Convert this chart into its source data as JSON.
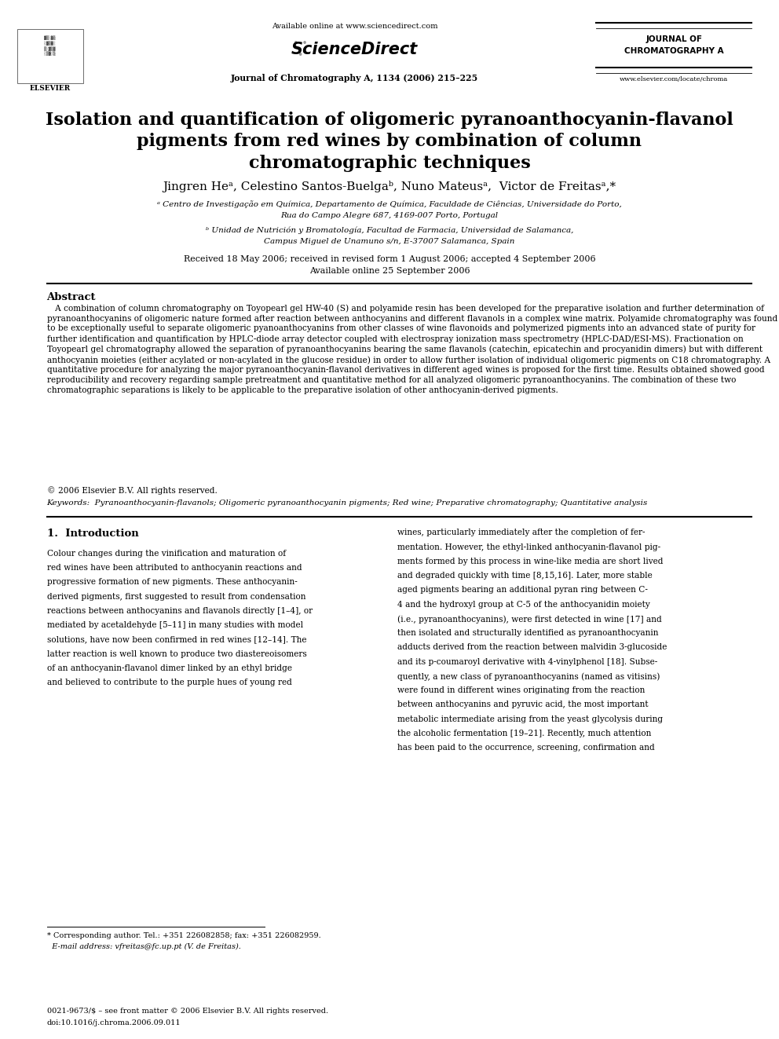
{
  "page_width": 9.92,
  "page_height": 13.23,
  "bg_color": "#ffffff",
  "header": {
    "available_online": "Available online at www.sciencedirect.com",
    "journal_name": "Journal of Chromatography A, 1134 (2006) 215–225",
    "journal_right_line1": "JOURNAL OF",
    "journal_right_line2": "CHROMATOGRAPHY A",
    "website": "www.elsevier.com/locate/chroma"
  },
  "title_line1": "Isolation and quantification of oligomeric pyranoanthocyanin-flavanol",
  "title_line2": "pigments from red wines by combination of column",
  "title_line3": "chromatographic techniques",
  "authors": "Jingren Heᵃ, Celestino Santos-Buelgaᵇ, Nuno Mateusᵃ,  Victor de Freitasᵃ,*",
  "affiliation_a": "ᵃ Centro de Investigação em Química, Departamento de Química, Faculdade de Ciências, Universidade do Porto,",
  "affiliation_a2": "Rua do Campo Alegre 687, 4169-007 Porto, Portugal",
  "affiliation_b": "ᵇ Unidad de Nutrición y Bromatología, Facultad de Farmacia, Universidad de Salamanca,",
  "affiliation_b2": "Campus Miguel de Unamuno s/n, E-37007 Salamanca, Spain",
  "received1": "Received 18 May 2006; received in revised form 1 August 2006; accepted 4 September 2006",
  "received2": "Available online 25 September 2006",
  "abstract_title": "Abstract",
  "abstract_body1": "   A combination of column chromatography on Toyopearl gel HW-40 (S) and polyamide resin has been developed for the preparative isolation and further determination of pyranoanthocyanins of oligomeric nature formed after reaction between anthocyanins and different flavanols in a complex wine matrix. Polyamide chromatography was found to be exceptionally useful to separate oligomeric pyanoanthocyanins from other classes of wine flavonoids and polymerized pigments into an advanced state of purity for further identification and quantification by HPLC-diode array detector coupled with electrospray ionization mass spectrometry (HPLC-DAD/ESI-MS). Fractionation on Toyopearl gel chromatography allowed the separation of pyranoanthocyanins bearing the same flavanols (catechin, epicatechin and procyanidin dimers) but with different anthocyanin moieties (either acylated or non-acylated in the glucose residue) in order to allow further isolation of individual oligomeric pigments on C18 chromatography. A quantitative procedure for analyzing the major pyranoanthocyanin-flavanol derivatives in different aged wines is proposed for the first time. Results obtained showed good reproducibility and recovery regarding sample pretreatment and quantitative method for all analyzed oligomeric pyranoanthocyanins. The combination of these two chromatographic separations is likely to be applicable to the preparative isolation of other anthocyanin-derived pigments.",
  "abstract_copy": "© 2006 Elsevier B.V. All rights reserved.",
  "keywords": "Keywords:  Pyranoanthocyanin-flavanols; Oligomeric pyranoanthocyanin pigments; Red wine; Preparative chromatography; Quantitative analysis",
  "intro_title": "1.  Introduction",
  "intro_left1": "Colour changes during the vinification and maturation of",
  "intro_left2": "red wines have been attributed to anthocyanin reactions and",
  "intro_left3": "progressive formation of new pigments. These anthocyanin-",
  "intro_left4": "derived pigments, first suggested to result from condensation",
  "intro_left5": "reactions between anthocyanins and flavanols directly [1–4], or",
  "intro_left6": "mediated by acetaldehyde [5–11] in many studies with model",
  "intro_left7": "solutions, have now been confirmed in red wines [12–14]. The",
  "intro_left8": "latter reaction is well known to produce two diastereoisomers",
  "intro_left9": "of an anthocyanin-flavanol dimer linked by an ethyl bridge",
  "intro_left10": "and believed to contribute to the purple hues of young red",
  "intro_right1": "wines, particularly immediately after the completion of fer-",
  "intro_right2": "mentation. However, the ethyl-linked anthocyanin-flavanol pig-",
  "intro_right3": "ments formed by this process in wine-like media are short lived",
  "intro_right4": "and degraded quickly with time [8,15,16]. Later, more stable",
  "intro_right5": "aged pigments bearing an additional pyran ring between C-",
  "intro_right6": "4 and the hydroxyl group at C-5 of the anthocyanidin moiety",
  "intro_right7": "(i.e., pyranoanthocyanins), were first detected in wine [17] and",
  "intro_right8": "then isolated and structurally identified as pyranoanthocyanin",
  "intro_right9": "adducts derived from the reaction between malvidin 3-glucoside",
  "intro_right10": "and its p-coumaroyl derivative with 4-vinylphenol [18]. Subse-",
  "intro_right11": "quently, a new class of pyranoanthocyanins (named as vitisins)",
  "intro_right12": "were found in different wines originating from the reaction",
  "intro_right13": "between anthocyanins and pyruvic acid, the most important",
  "intro_right14": "metabolic intermediate arising from the yeast glycolysis during",
  "intro_right15": "the alcoholic fermentation [19–21]. Recently, much attention",
  "intro_right16": "has been paid to the occurrence, screening, confirmation and",
  "footnote1": "* Corresponding author. Tel.: +351 226082858; fax: +351 226082959.",
  "footnote2": "  E-mail address: vfreitas@fc.up.pt (V. de Freitas).",
  "footer1": "0021-9673/$ – see front matter © 2006 Elsevier B.V. All rights reserved.",
  "footer2": "doi:10.1016/j.chroma.2006.09.011"
}
